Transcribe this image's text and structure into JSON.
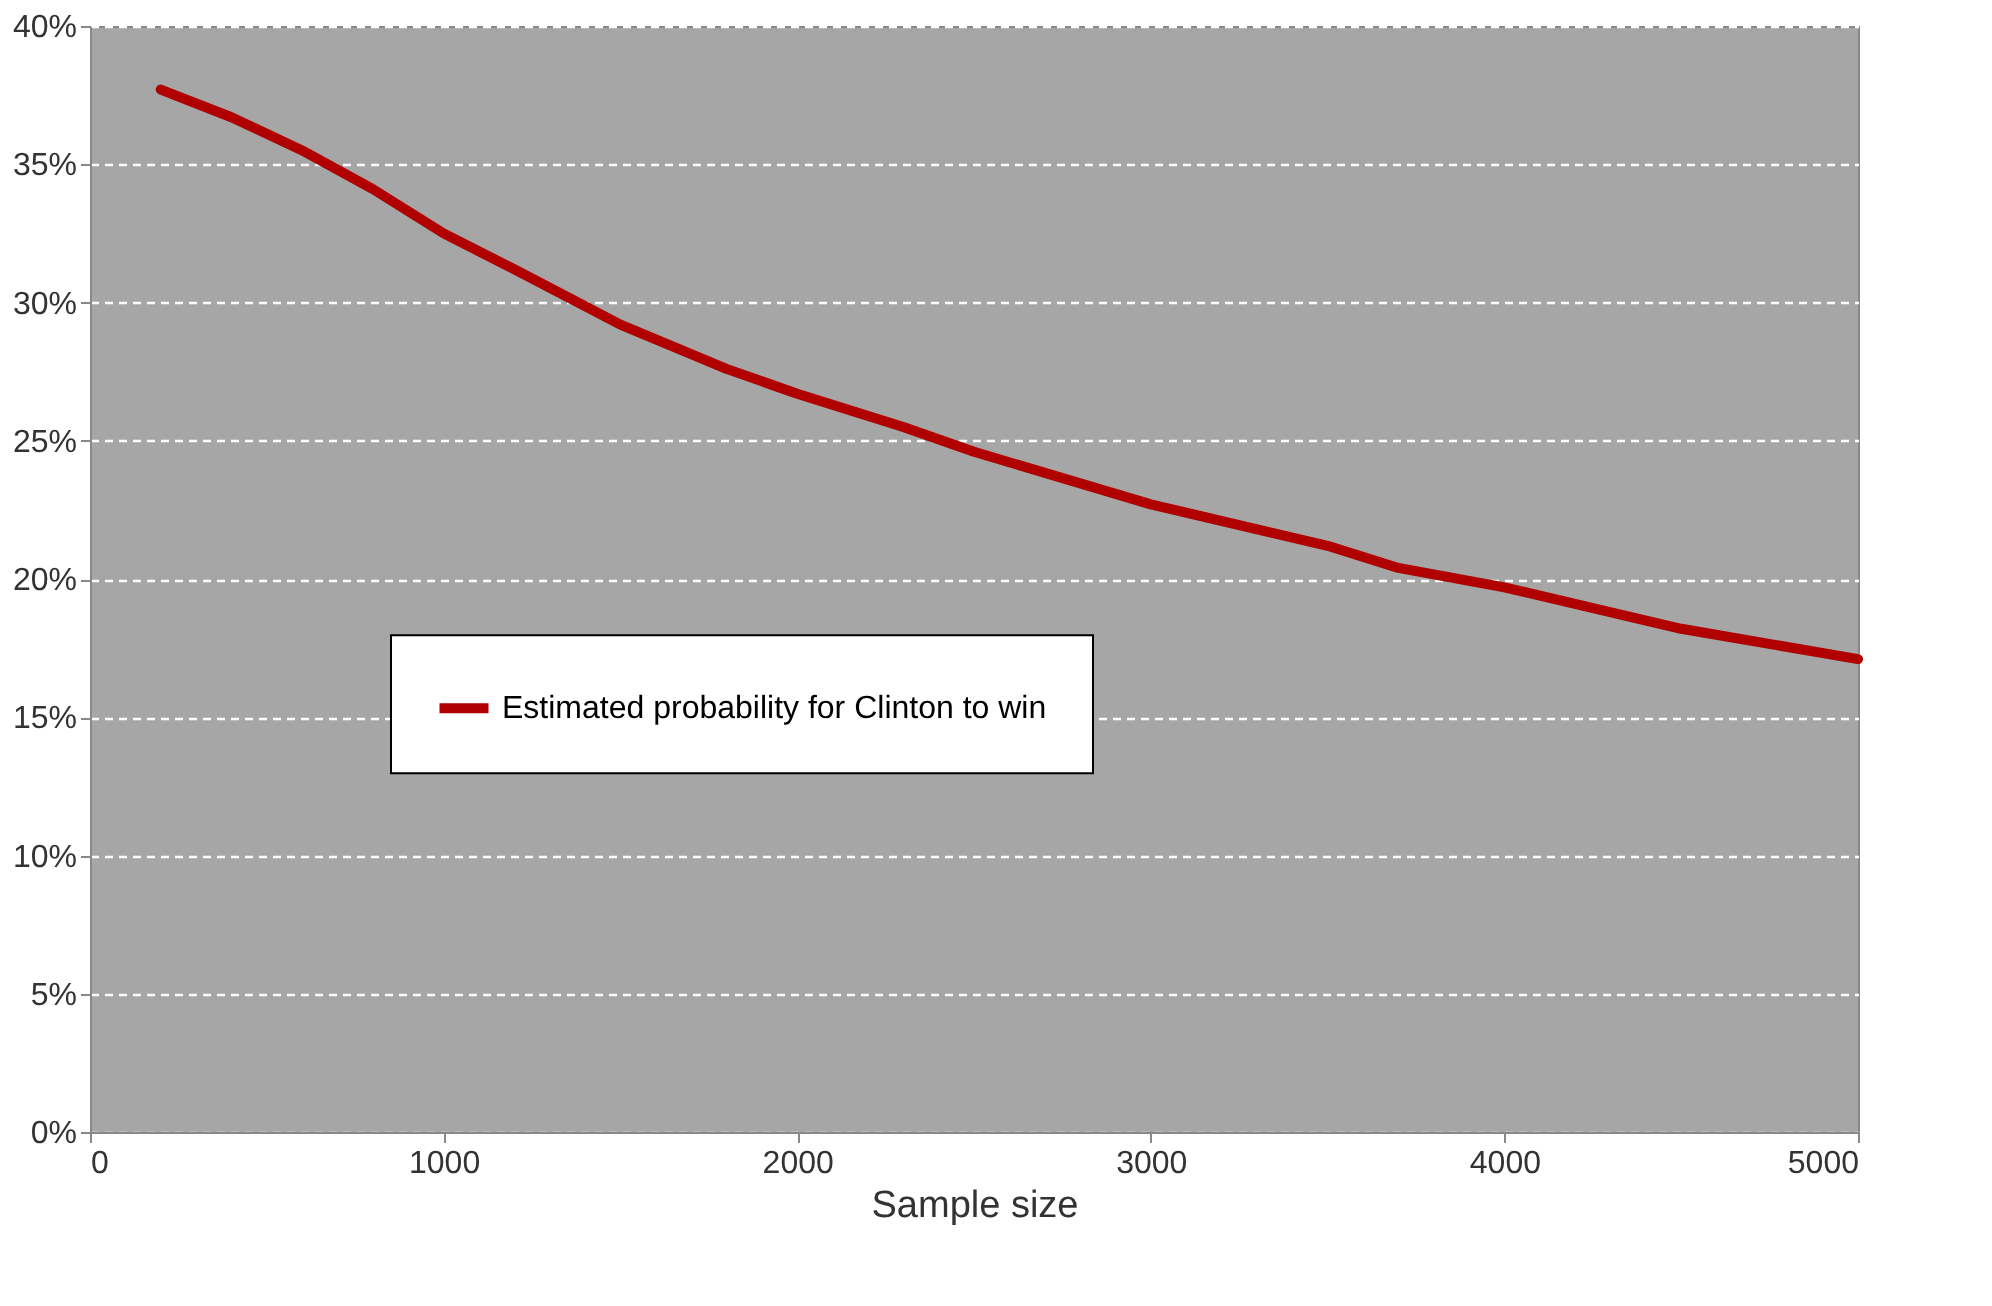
{
  "chart_data": {
    "type": "line",
    "xlabel": "Sample size",
    "series": [
      {
        "name": "Estimated probability for Clinton to win",
        "color": "#b00000",
        "x": [
          200,
          400,
          600,
          800,
          1000,
          1200,
          1500,
          1800,
          2000,
          2300,
          2500,
          3000,
          3500,
          3700,
          4000,
          4500,
          5000
        ],
        "values": [
          37.7,
          36.7,
          35.5,
          34.1,
          32.5,
          31.2,
          29.2,
          27.6,
          26.7,
          25.5,
          24.6,
          22.7,
          21.2,
          20.4,
          19.7,
          18.2,
          17.1
        ]
      }
    ],
    "xlim": [
      0,
      5000
    ],
    "xticks": [
      0,
      1000,
      2000,
      3000,
      4000,
      5000
    ],
    "ylim": [
      0,
      40
    ],
    "yticks": [
      {
        "value": 0,
        "label": "0%"
      },
      {
        "value": 5,
        "label": "5%"
      },
      {
        "value": 10,
        "label": "10%"
      },
      {
        "value": 15,
        "label": "15%"
      },
      {
        "value": 20,
        "label": "20%"
      },
      {
        "value": 25,
        "label": "25%"
      },
      {
        "value": 30,
        "label": "30%"
      },
      {
        "value": 35,
        "label": "35%"
      },
      {
        "value": 40,
        "label": "40%"
      }
    ],
    "grid": "y",
    "legend": "left",
    "marker": "none",
    "line_style": "solid"
  }
}
